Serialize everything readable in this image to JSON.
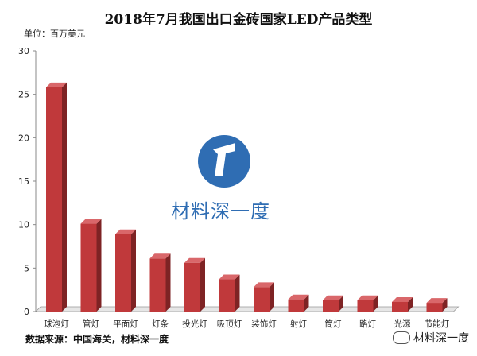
{
  "chart_data": {
    "type": "bar",
    "title": "2018年7月我国出口金砖国家LED产品类型",
    "unit_label": "单位：百万美元",
    "categories": [
      "球泡灯",
      "管灯",
      "平面灯",
      "灯条",
      "投光灯",
      "吸顶灯",
      "装饰灯",
      "射灯",
      "筒灯",
      "路灯",
      "光源",
      "节能灯"
    ],
    "values": [
      25.8,
      10.1,
      8.9,
      6.1,
      5.6,
      3.7,
      2.8,
      1.4,
      1.3,
      1.3,
      1.1,
      1.0
    ],
    "ylim": [
      0,
      30
    ],
    "yticks": [
      0,
      5,
      10,
      15,
      20,
      25,
      30
    ],
    "grid": false,
    "bar_color": "#c0393b",
    "bar_side_color": "#7e2324",
    "bar_top_color": "#d9676a"
  },
  "source_text": "数据来源：中国海关，材料深一度",
  "logo": {
    "text": "材料深一度",
    "color": "#2f6db3"
  },
  "watermark": {
    "text": "材料深一度",
    "icon": "wechat-icon"
  }
}
